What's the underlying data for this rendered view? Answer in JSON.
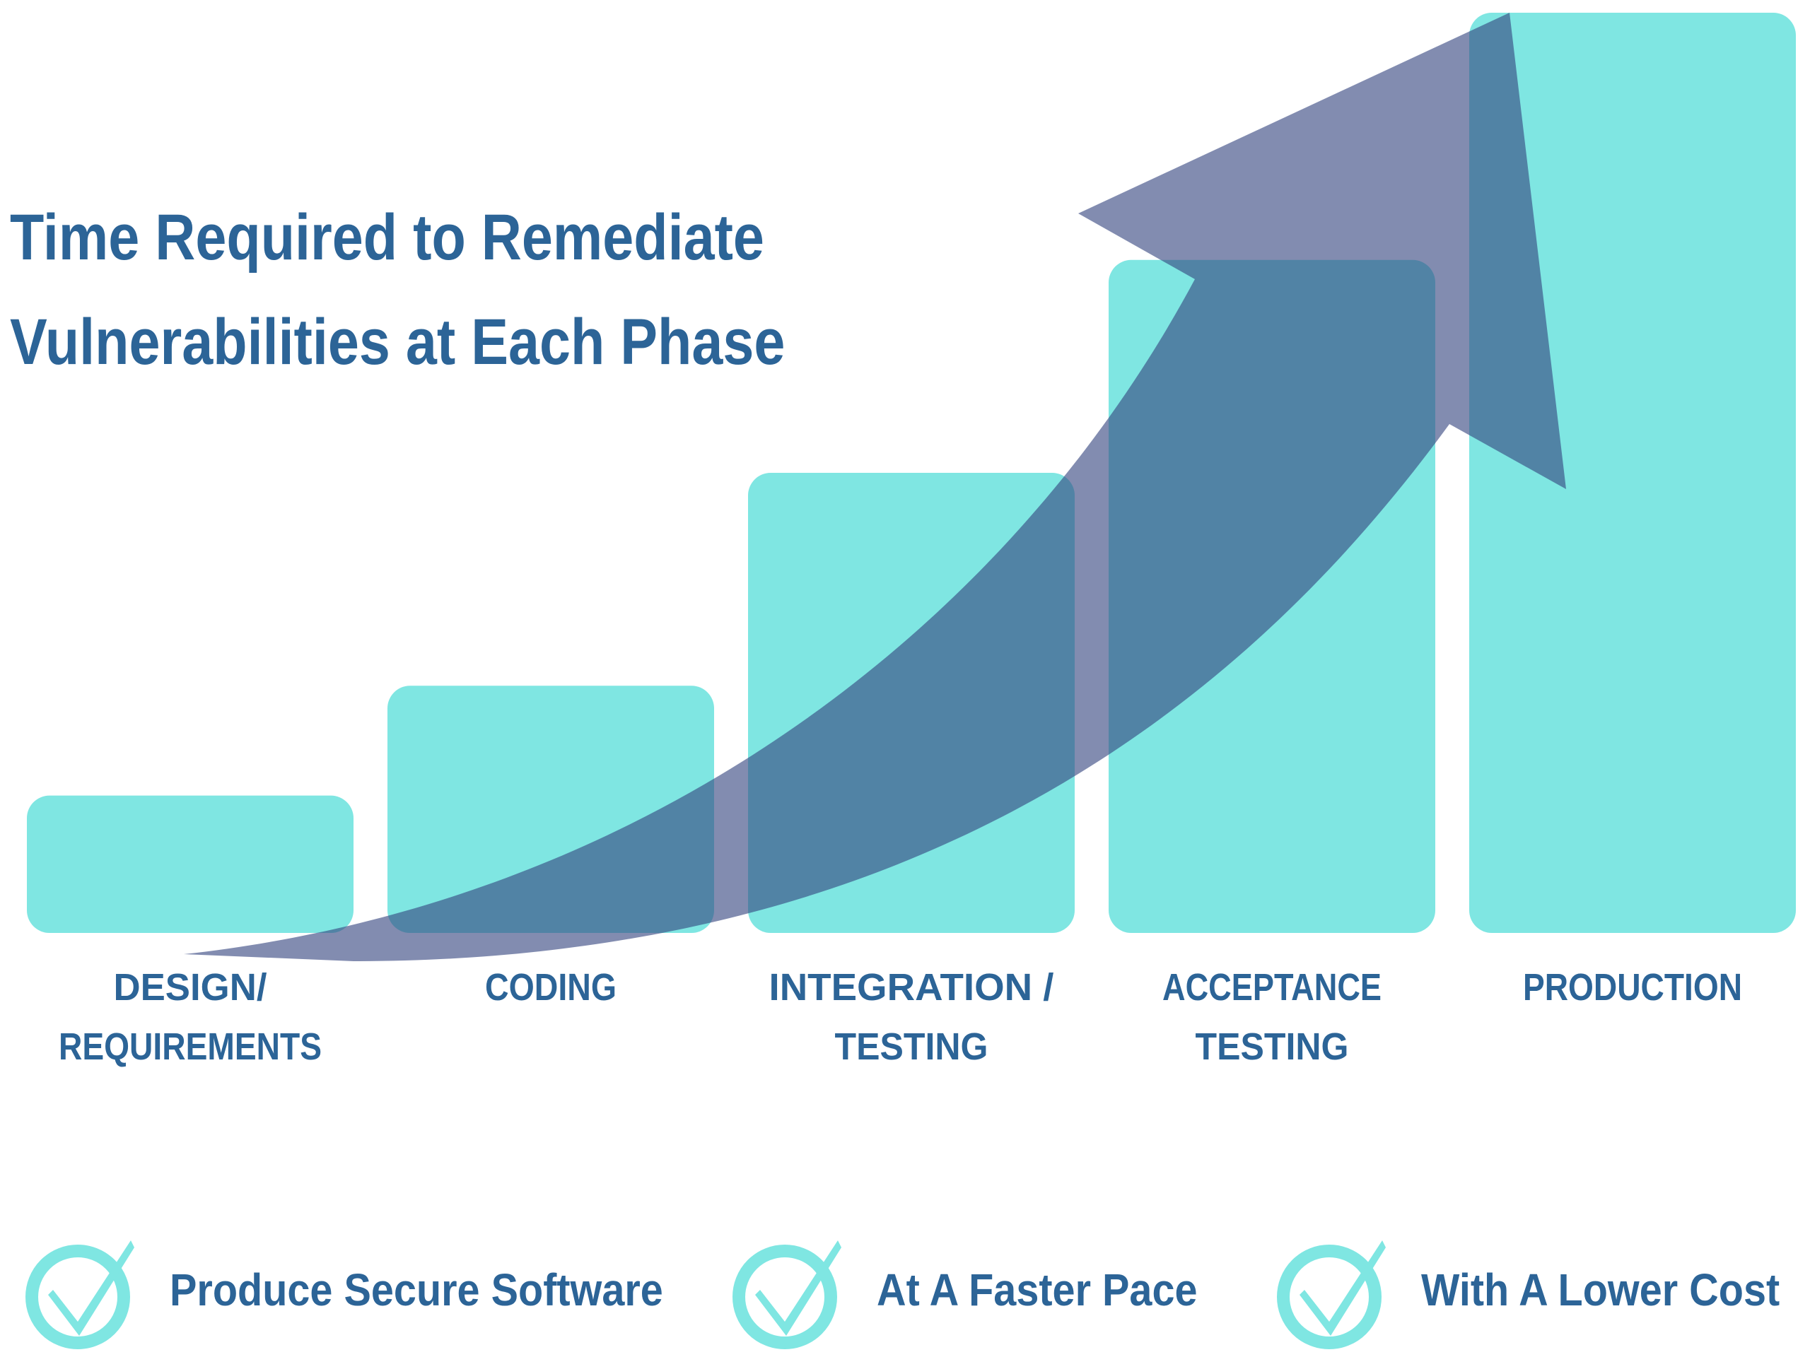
{
  "title": {
    "line1": "Time Required to Remediate",
    "line2": "Vulnerabilities at Each Phase"
  },
  "chart_data": {
    "type": "bar",
    "title": "Time Required to Remediate Vulnerabilities at Each Phase",
    "categories": [
      [
        "DESIGN/",
        "REQUIREMENTS"
      ],
      [
        "CODING"
      ],
      [
        "INTEGRATION /",
        "TESTING"
      ],
      [
        "ACCEPTANCE",
        "TESTING"
      ],
      [
        "PRODUCTION"
      ]
    ],
    "values": [
      1.0,
      1.8,
      3.35,
      4.9,
      6.7
    ],
    "ylim": [
      0,
      6.7
    ],
    "grid": false,
    "legend": "none",
    "annotations": [
      "upward-trend-arrow"
    ],
    "colors": {
      "bar": "#7fe6e2",
      "arrow": "#35467f",
      "label": "#2c6497"
    }
  },
  "footer": [
    {
      "text": "Produce Secure Software",
      "icon": "check-circle-icon"
    },
    {
      "text": "At A Faster Pace",
      "icon": "check-circle-icon"
    },
    {
      "text": "With A Lower Cost",
      "icon": "check-circle-icon"
    }
  ],
  "colors": {
    "title": "#2c6497",
    "check": "#7fe6e2"
  }
}
